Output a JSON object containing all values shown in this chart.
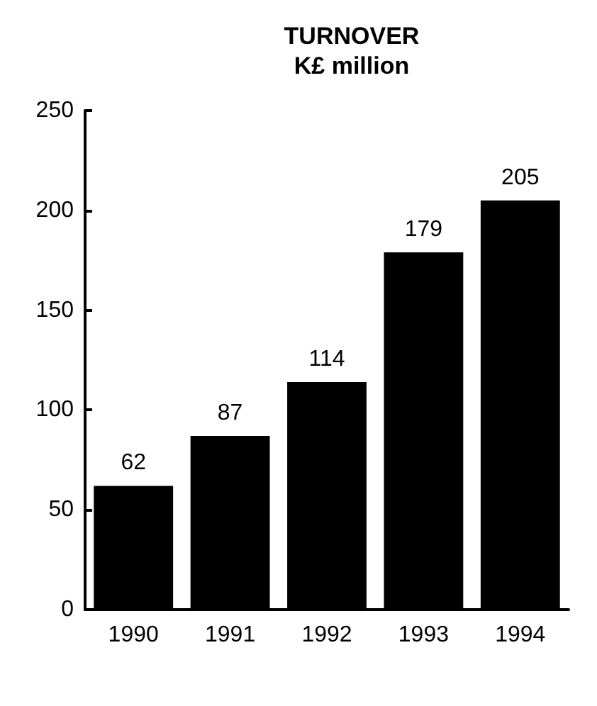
{
  "chart_data": {
    "type": "bar",
    "title": "TURNOVER",
    "subtitle": "K£ million",
    "categories": [
      "1990",
      "1991",
      "1992",
      "1993",
      "1994"
    ],
    "values": [
      62,
      87,
      114,
      179,
      205
    ],
    "color": "#000000",
    "ylim": [
      0,
      250
    ],
    "yticks": [
      0,
      50,
      100,
      150,
      200,
      250
    ],
    "grid": false,
    "data_labels": true
  }
}
